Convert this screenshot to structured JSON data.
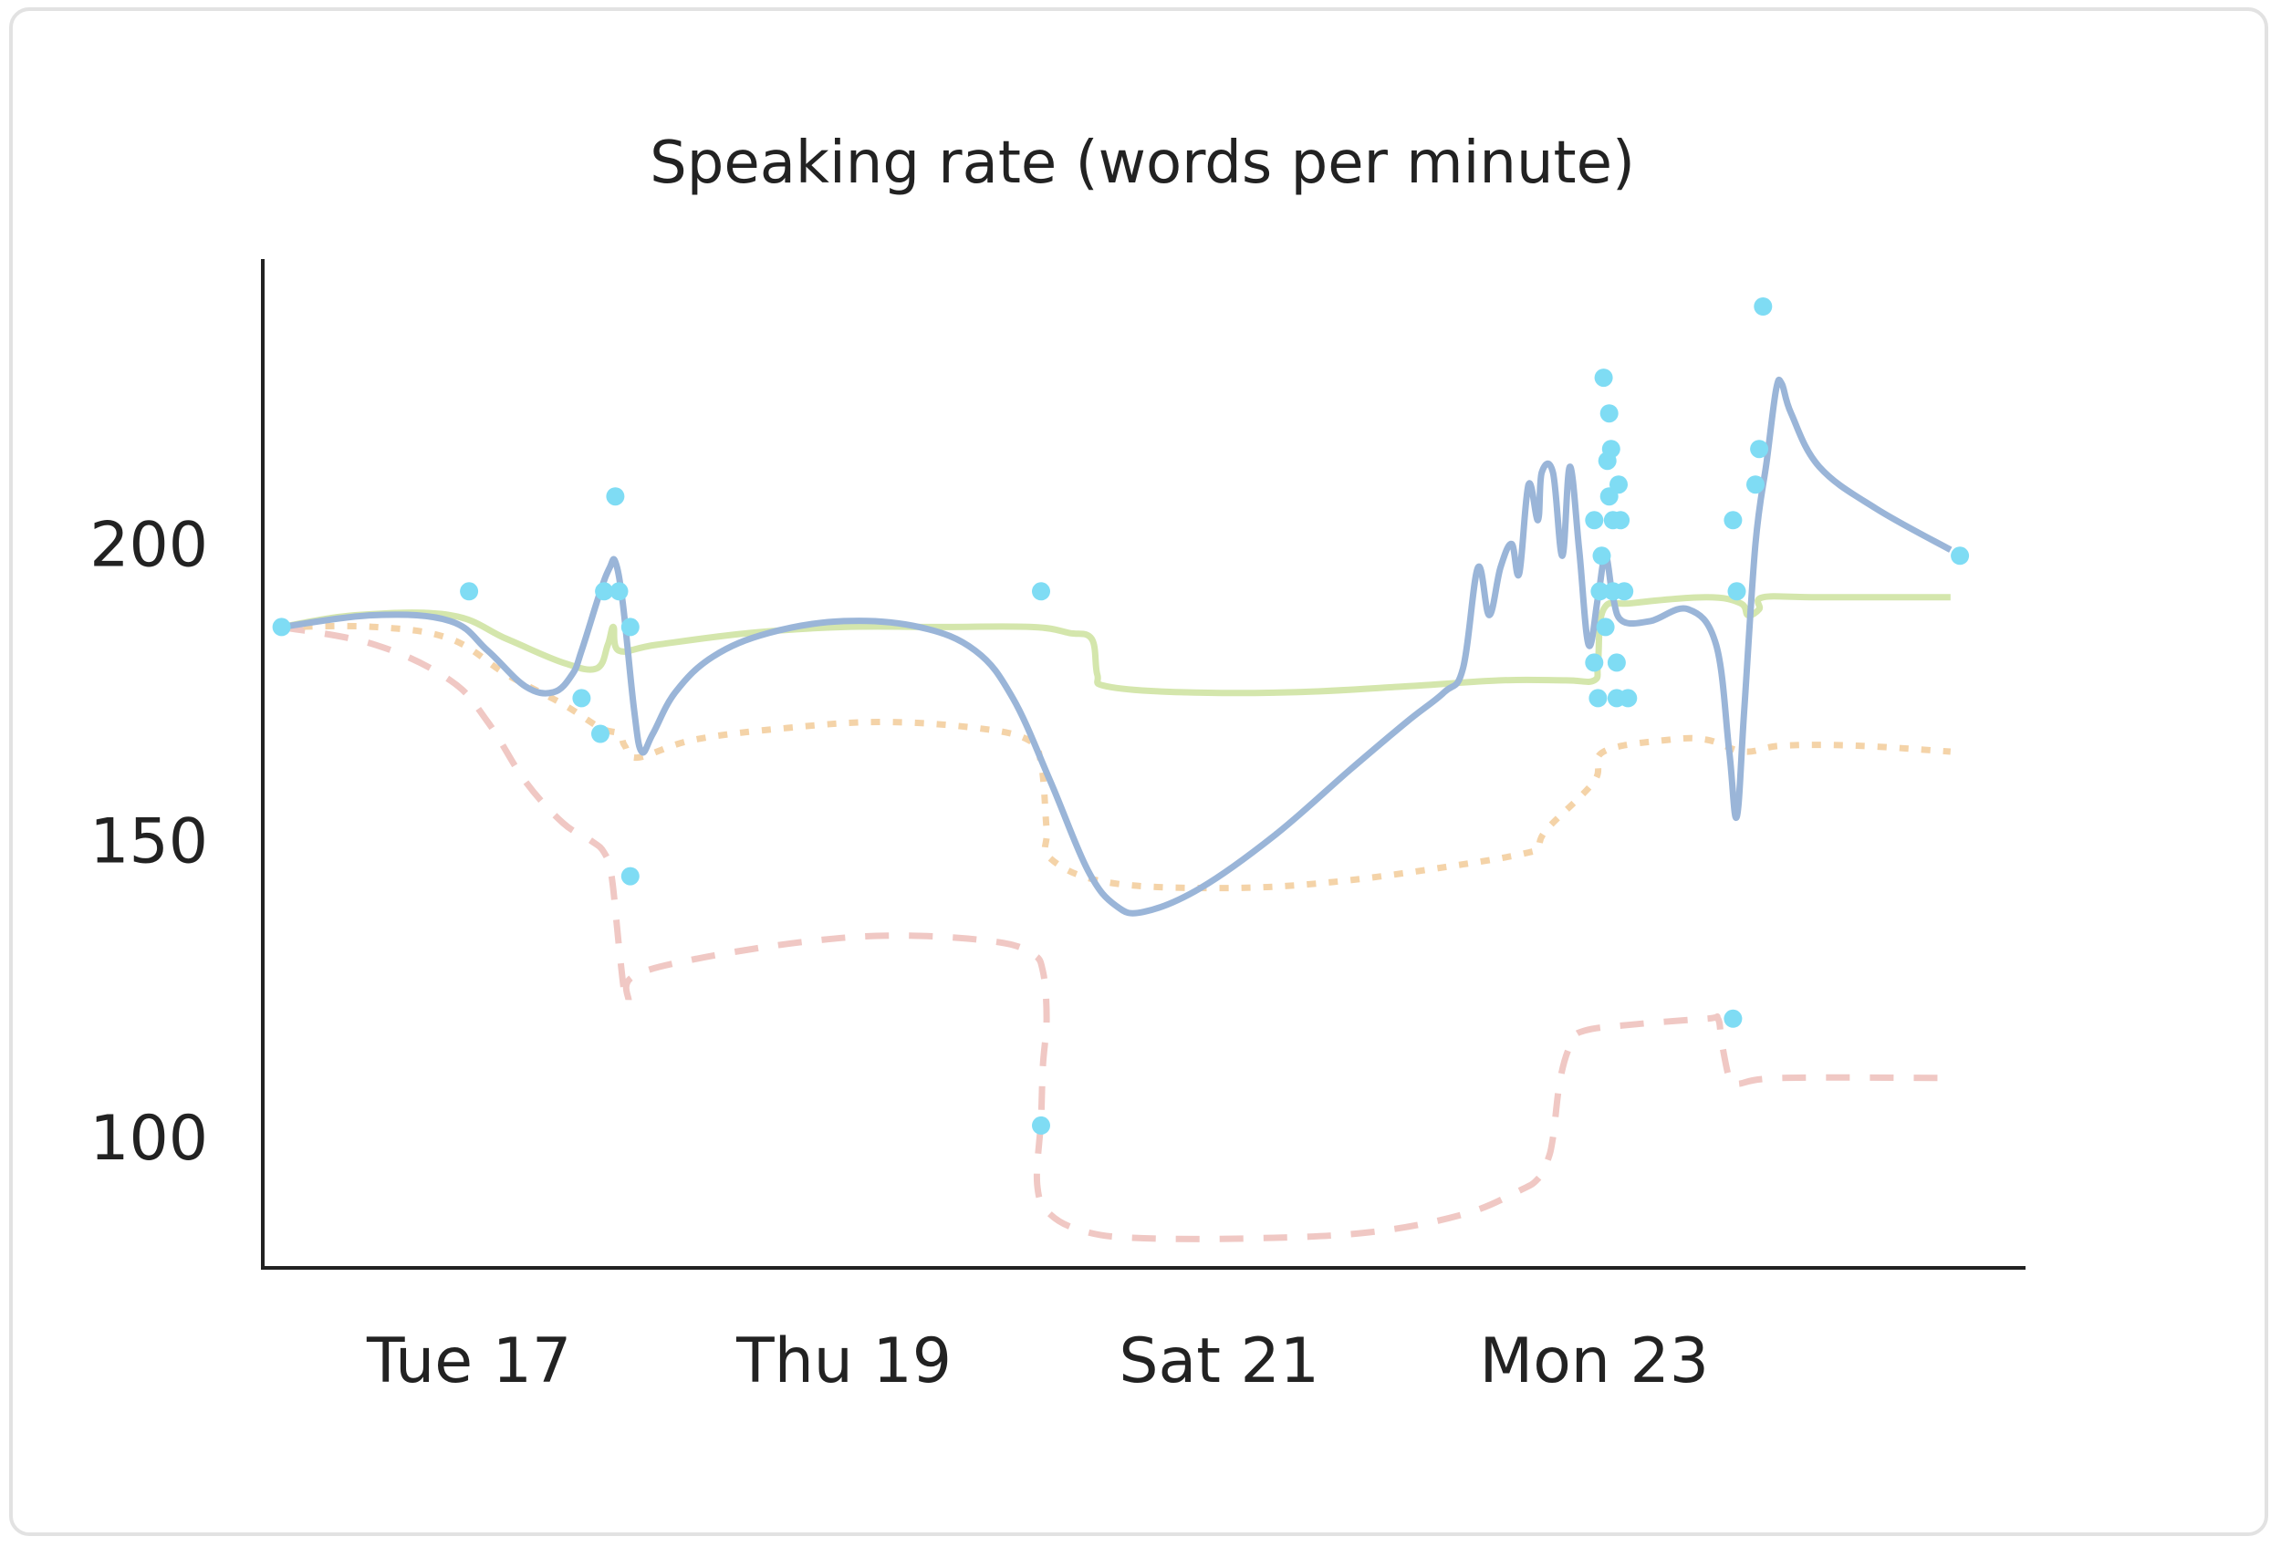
{
  "chart_data": {
    "type": "line",
    "title": "Speaking rate (words per minute)",
    "xlabel": "",
    "ylabel": "",
    "x_ticks": [
      {
        "value": 1,
        "label": "Tue 17"
      },
      {
        "value": 3,
        "label": "Thu 19"
      },
      {
        "value": 5,
        "label": "Sat 21"
      },
      {
        "value": 7,
        "label": "Mon 23"
      }
    ],
    "y_ticks": [
      100,
      150,
      200
    ],
    "xlim": [
      -0.1,
      9.3
    ],
    "ylim": [
      78,
      248
    ],
    "grid": false,
    "legend": "none",
    "colors": {
      "line": "#9ab5d8",
      "band": "#d4e6ac",
      "lower_dotted": "#f4d3a8",
      "lower_dashed": "#f0c8c4",
      "points": "#7fdcf4",
      "axis": "#222222"
    },
    "series": [
      {
        "style": "line",
        "values": [
          [
            0,
            186
          ],
          [
            0.5,
            188
          ],
          [
            0.9,
            187
          ],
          [
            1.1,
            182
          ],
          [
            1.3,
            176
          ],
          [
            1.45,
            175
          ],
          [
            1.55,
            178
          ],
          [
            1.6,
            182
          ],
          [
            1.7,
            192
          ],
          [
            1.75,
            196
          ],
          [
            1.78,
            197
          ],
          [
            1.82,
            190
          ],
          [
            1.88,
            172
          ],
          [
            1.92,
            165
          ],
          [
            1.98,
            168
          ],
          [
            2.1,
            175
          ],
          [
            2.3,
            181
          ],
          [
            2.6,
            185
          ],
          [
            3.0,
            187
          ],
          [
            3.4,
            186
          ],
          [
            3.7,
            182
          ],
          [
            3.9,
            174
          ],
          [
            4.1,
            160
          ],
          [
            4.3,
            145
          ],
          [
            4.45,
            139
          ],
          [
            4.6,
            138
          ],
          [
            4.9,
            142
          ],
          [
            5.3,
            151
          ],
          [
            5.7,
            162
          ],
          [
            6.0,
            170
          ],
          [
            6.2,
            175
          ],
          [
            6.3,
            179
          ],
          [
            6.38,
            196
          ],
          [
            6.44,
            188
          ],
          [
            6.5,
            196
          ],
          [
            6.56,
            200
          ],
          [
            6.6,
            195
          ],
          [
            6.65,
            210
          ],
          [
            6.7,
            204
          ],
          [
            6.72,
            212
          ],
          [
            6.78,
            212
          ],
          [
            6.83,
            198
          ],
          [
            6.87,
            213
          ],
          [
            6.92,
            199
          ],
          [
            6.97,
            183
          ],
          [
            7.02,
            191
          ],
          [
            7.06,
            198
          ],
          [
            7.1,
            191
          ],
          [
            7.15,
            187
          ],
          [
            7.3,
            187
          ],
          [
            7.5,
            189
          ],
          [
            7.65,
            183
          ],
          [
            7.72,
            165
          ],
          [
            7.76,
            154
          ],
          [
            7.8,
            172
          ],
          [
            7.86,
            200
          ],
          [
            7.92,
            214
          ],
          [
            7.97,
            226
          ],
          [
            8.0,
            227
          ],
          [
            8.05,
            222
          ],
          [
            8.2,
            213
          ],
          [
            8.5,
            206
          ],
          [
            8.9,
            199
          ]
        ]
      },
      {
        "style": "band",
        "values": [
          [
            0,
            186
          ],
          [
            0.4,
            188
          ],
          [
            0.9,
            188
          ],
          [
            1.2,
            184
          ],
          [
            1.5,
            180
          ],
          [
            1.68,
            179
          ],
          [
            1.74,
            183
          ],
          [
            1.77,
            186
          ],
          [
            1.8,
            182
          ],
          [
            2.0,
            183
          ],
          [
            2.5,
            185
          ],
          [
            3.0,
            186
          ],
          [
            3.5,
            186
          ],
          [
            4.0,
            186
          ],
          [
            4.2,
            185
          ],
          [
            4.32,
            184
          ],
          [
            4.35,
            178
          ],
          [
            4.4,
            176
          ],
          [
            4.8,
            175
          ],
          [
            5.4,
            175
          ],
          [
            6.0,
            176
          ],
          [
            6.5,
            177
          ],
          [
            6.85,
            177
          ],
          [
            7.0,
            177
          ],
          [
            7.02,
            180
          ],
          [
            7.05,
            189
          ],
          [
            7.2,
            190
          ],
          [
            7.6,
            191
          ],
          [
            7.78,
            190
          ],
          [
            7.82,
            188
          ],
          [
            7.88,
            189
          ],
          [
            7.9,
            191
          ],
          [
            8.2,
            191
          ],
          [
            8.9,
            191
          ]
        ]
      },
      {
        "style": "lower_dotted",
        "values": [
          [
            0,
            186
          ],
          [
            0.5,
            186
          ],
          [
            0.9,
            184
          ],
          [
            1.2,
            178
          ],
          [
            1.5,
            173
          ],
          [
            1.7,
            169
          ],
          [
            1.8,
            168
          ],
          [
            1.83,
            166
          ],
          [
            1.9,
            164
          ],
          [
            2.2,
            167
          ],
          [
            2.7,
            169
          ],
          [
            3.2,
            170
          ],
          [
            3.7,
            169
          ],
          [
            3.98,
            167
          ],
          [
            4.05,
            163
          ],
          [
            4.08,
            152
          ],
          [
            4.1,
            147
          ],
          [
            4.4,
            143
          ],
          [
            5.0,
            142
          ],
          [
            5.6,
            143
          ],
          [
            6.3,
            146
          ],
          [
            6.65,
            148
          ],
          [
            6.7,
            149
          ],
          [
            6.75,
            152
          ],
          [
            7.0,
            160
          ],
          [
            7.05,
            165
          ],
          [
            7.4,
            167
          ],
          [
            7.6,
            167
          ],
          [
            7.8,
            165
          ],
          [
            8.0,
            166
          ],
          [
            8.4,
            166
          ],
          [
            8.9,
            165
          ]
        ]
      },
      {
        "style": "lower_dashed",
        "values": [
          [
            0,
            186
          ],
          [
            0.5,
            183
          ],
          [
            0.9,
            177
          ],
          [
            1.1,
            170
          ],
          [
            1.3,
            160
          ],
          [
            1.5,
            153
          ],
          [
            1.65,
            150
          ],
          [
            1.72,
            148
          ],
          [
            1.76,
            144
          ],
          [
            1.8,
            132
          ],
          [
            1.83,
            124
          ],
          [
            1.85,
            123
          ],
          [
            1.87,
            127
          ],
          [
            2.2,
            130
          ],
          [
            2.8,
            133
          ],
          [
            3.3,
            134
          ],
          [
            3.8,
            133
          ],
          [
            4.0,
            131
          ],
          [
            4.06,
            128
          ],
          [
            4.08,
            120
          ],
          [
            4.06,
            112
          ],
          [
            4.05,
            103
          ],
          [
            4.03,
            92
          ],
          [
            4.1,
            87
          ],
          [
            4.3,
            84
          ],
          [
            4.6,
            83
          ],
          [
            5.2,
            83
          ],
          [
            5.8,
            84
          ],
          [
            6.3,
            87
          ],
          [
            6.6,
            91
          ],
          [
            6.7,
            93
          ],
          [
            6.75,
            96
          ],
          [
            6.78,
            100
          ],
          [
            6.82,
            110
          ],
          [
            6.88,
            116
          ],
          [
            6.95,
            118
          ],
          [
            7.2,
            119
          ],
          [
            7.6,
            120
          ],
          [
            7.66,
            120
          ],
          [
            7.68,
            116
          ],
          [
            7.72,
            110
          ],
          [
            7.76,
            109
          ],
          [
            8.0,
            110
          ],
          [
            8.9,
            110
          ]
        ]
      },
      {
        "style": "points",
        "values": [
          [
            0,
            186
          ],
          [
            1.0,
            192
          ],
          [
            1.6,
            174
          ],
          [
            1.7,
            168
          ],
          [
            1.72,
            192
          ],
          [
            1.78,
            208
          ],
          [
            1.8,
            192
          ],
          [
            1.86,
            186
          ],
          [
            1.86,
            144
          ],
          [
            4.05,
            192
          ],
          [
            4.05,
            102
          ],
          [
            7.0,
            204
          ],
          [
            7.0,
            180
          ],
          [
            7.02,
            174
          ],
          [
            7.03,
            192
          ],
          [
            7.04,
            198
          ],
          [
            7.05,
            228
          ],
          [
            7.06,
            186
          ],
          [
            7.07,
            214
          ],
          [
            7.08,
            208
          ],
          [
            7.08,
            222
          ],
          [
            7.09,
            216
          ],
          [
            7.1,
            204
          ],
          [
            7.1,
            192
          ],
          [
            7.12,
            180
          ],
          [
            7.12,
            174
          ],
          [
            7.13,
            210
          ],
          [
            7.14,
            204
          ],
          [
            7.16,
            192
          ],
          [
            7.18,
            174
          ],
          [
            7.74,
            204
          ],
          [
            7.76,
            192
          ],
          [
            7.74,
            120
          ],
          [
            7.86,
            210
          ],
          [
            7.88,
            216
          ],
          [
            7.9,
            240
          ],
          [
            8.95,
            198
          ]
        ]
      }
    ]
  }
}
